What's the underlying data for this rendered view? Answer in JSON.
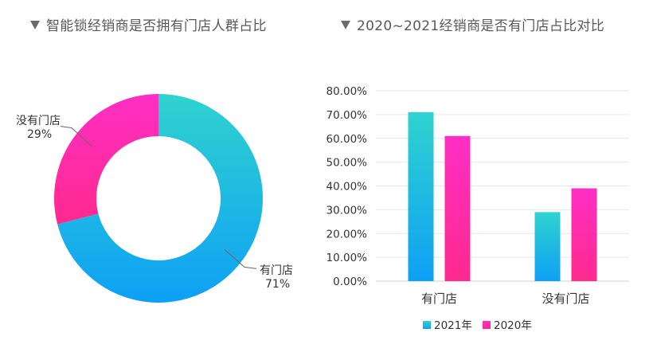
{
  "titles": {
    "left": "智能锁经销商是否拥有门店人群占比",
    "right": "2020~2021经销商是否有门店占比对比"
  },
  "colors": {
    "teal": "#2fd3cf",
    "blue": "#0ea0f5",
    "pink": "#ff2ec4",
    "magenta": "#ff2a8e",
    "title_text": "#595959",
    "axis_text": "#333333",
    "grid": "#e6e6e6"
  },
  "chart_data": [
    {
      "type": "pie",
      "title": "智能锁经销商是否拥有门店人群占比",
      "slices": [
        {
          "label": "有门店",
          "value": 71,
          "display": "71%"
        },
        {
          "label": "没有门店",
          "value": 29,
          "display": "29%"
        }
      ]
    },
    {
      "type": "bar",
      "title": "2020~2021经销商是否有门店占比对比",
      "categories": [
        "有门店",
        "没有门店"
      ],
      "series": [
        {
          "name": "2021年",
          "values": [
            0.71,
            0.29
          ]
        },
        {
          "name": "2020年",
          "values": [
            0.61,
            0.39
          ]
        }
      ],
      "ylim": [
        0,
        0.8
      ],
      "yticks": [
        "0.00%",
        "10.00%",
        "20.00%",
        "30.00%",
        "40.00%",
        "50.00%",
        "60.00%",
        "70.00%",
        "80.00%"
      ],
      "legend": "bottom",
      "grid": true
    }
  ]
}
